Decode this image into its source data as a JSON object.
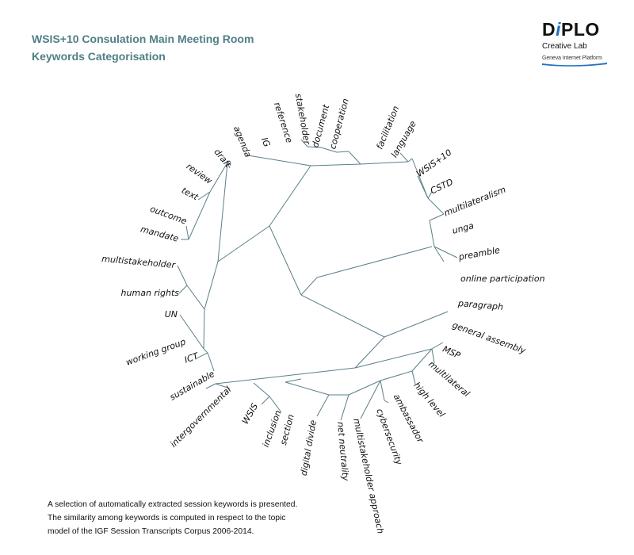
{
  "header": {
    "title_line1": "WSIS+10 Consulation Main Meeting Room",
    "title_line2": "Keywords Categorisation"
  },
  "logo": {
    "brand_prefix": "D",
    "brand_i": "i",
    "brand_suffix": "PLO",
    "subtitle": "Creative Lab",
    "platform": "Geneva Internet Platform"
  },
  "colors": {
    "title": "#4f7f86",
    "branch": "#5a8088",
    "brand_accent": "#1e73be"
  },
  "keywords": [
    "agenda",
    "IG",
    "reference",
    "stakeholder",
    "document",
    "cooperation",
    "facilitation",
    "language",
    "WSIS+10",
    "CSTD",
    "multilateralism",
    "unga",
    "preamble",
    "online participation",
    "paragraph",
    "general assembly",
    "MSP",
    "multilateral",
    "high level",
    "ambassador",
    "cybersecurity",
    "multistakeholder approach",
    "net neutrality",
    "digital divide",
    "section",
    "inclusion",
    "WSIS",
    "intergovernmental",
    "sustainable",
    "ICT",
    "working group",
    "UN",
    "human rights",
    "multistakeholder",
    "mandate",
    "outcome",
    "text",
    "review",
    "draft"
  ],
  "caption": {
    "line1": "A selection of automatically extracted session keywords is presented.",
    "line2": "The similarity among keywords is computed in respect to the topic",
    "line3": "model of the IGF Session Transcripts Corpus 2006-2014."
  }
}
